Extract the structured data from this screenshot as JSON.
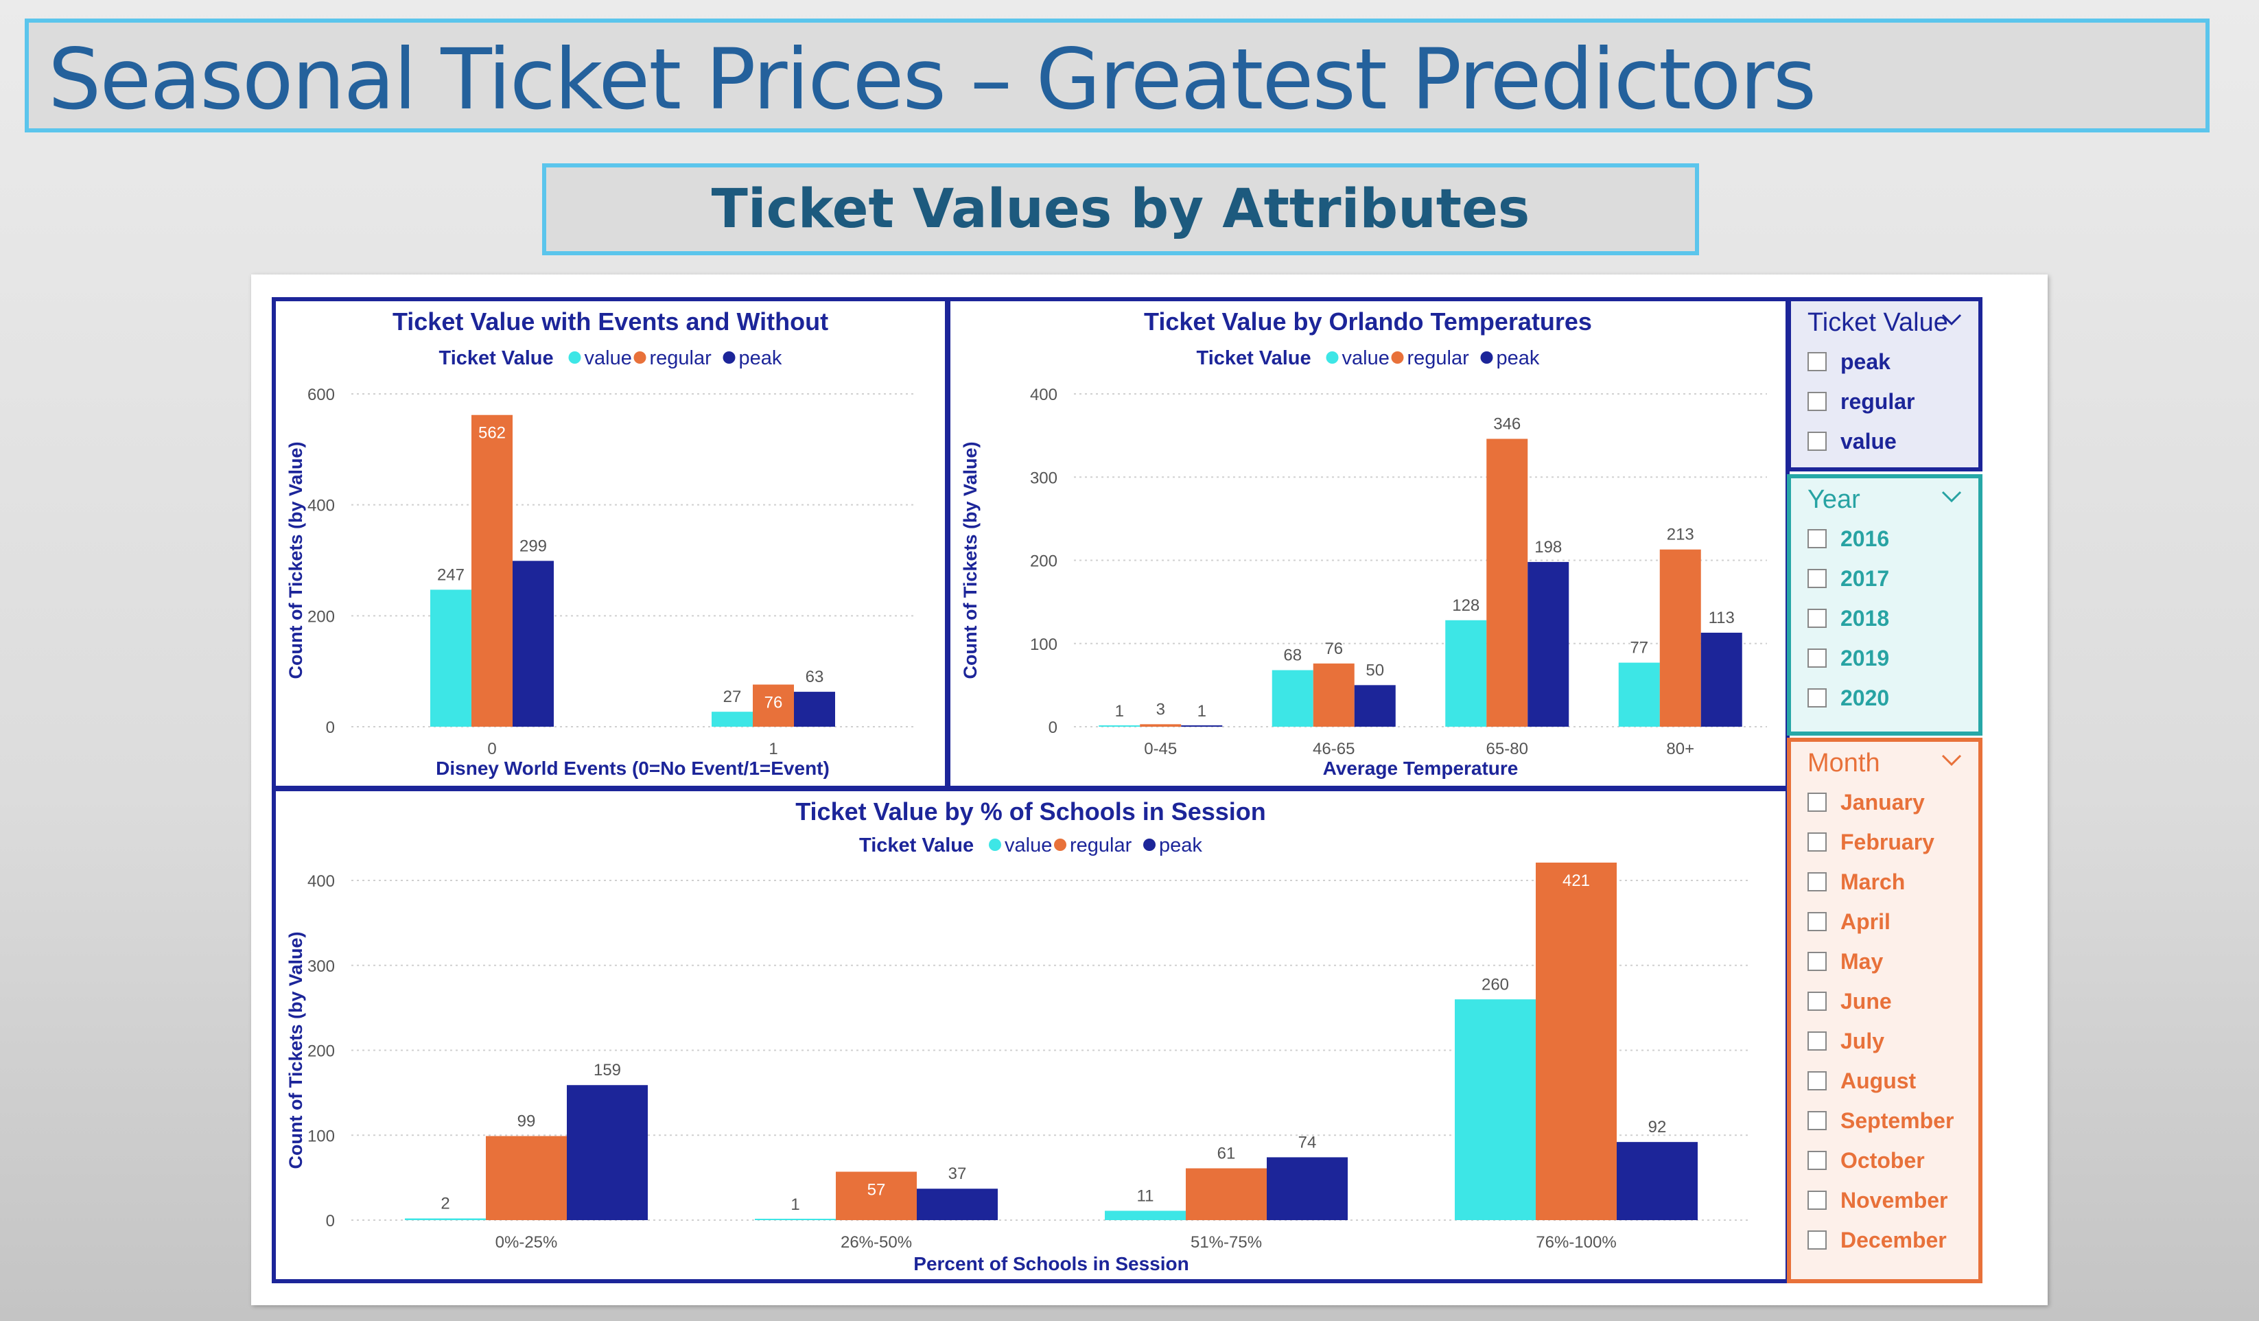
{
  "header": {
    "title": "Seasonal Ticket Prices – Greatest Predictors",
    "subtitle": "Ticket Values by Attributes"
  },
  "colors": {
    "value": "#3de6e6",
    "regular": "#e8713a",
    "peak": "#1c2599",
    "panel_border": "#1c2599",
    "header_border": "#5bc5ec"
  },
  "legend": {
    "title": "Ticket Value",
    "items": [
      "value",
      "regular",
      "peak"
    ]
  },
  "chart_data": [
    {
      "type": "bar",
      "title": "Ticket Value with Events and Without",
      "xlabel": "Disney World Events (0=No Event/1=Event)",
      "ylabel": "Count of Tickets (by Value)",
      "ylim": [
        0,
        600
      ],
      "yticks": [
        0,
        200,
        400,
        600
      ],
      "grid": true,
      "legend_position": "top",
      "categories": [
        "0",
        "1"
      ],
      "series": [
        {
          "name": "value",
          "values": [
            247,
            27
          ]
        },
        {
          "name": "regular",
          "values": [
            562,
            76
          ]
        },
        {
          "name": "peak",
          "values": [
            299,
            63
          ]
        }
      ]
    },
    {
      "type": "bar",
      "title": "Ticket Value by Orlando Temperatures",
      "xlabel": "Average Temperature",
      "ylabel": "Count of Tickets (by Value)",
      "ylim": [
        0,
        400
      ],
      "yticks": [
        0,
        100,
        200,
        300,
        400
      ],
      "grid": true,
      "legend_position": "top",
      "categories": [
        "0-45",
        "46-65",
        "65-80",
        "80+"
      ],
      "series": [
        {
          "name": "value",
          "values": [
            1,
            68,
            128,
            77
          ]
        },
        {
          "name": "regular",
          "values": [
            3,
            76,
            346,
            213
          ]
        },
        {
          "name": "peak",
          "values": [
            1,
            50,
            198,
            113
          ]
        }
      ]
    },
    {
      "type": "bar",
      "title": "Ticket Value by % of Schools in Session",
      "xlabel": "Percent of Schools in Session",
      "ylabel": "Count of Tickets (by Value)",
      "ylim": [
        0,
        400
      ],
      "yticks": [
        0,
        100,
        200,
        300,
        400
      ],
      "grid": true,
      "legend_position": "top",
      "categories": [
        "0%-25%",
        "26%-50%",
        "51%-75%",
        "76%-100%"
      ],
      "series": [
        {
          "name": "value",
          "values": [
            2,
            1,
            11,
            260
          ]
        },
        {
          "name": "regular",
          "values": [
            99,
            57,
            61,
            421
          ]
        },
        {
          "name": "peak",
          "values": [
            159,
            37,
            74,
            92
          ]
        }
      ]
    }
  ],
  "slicers": {
    "ticket_value": {
      "title": "Ticket Value",
      "options": [
        "peak",
        "regular",
        "value"
      ]
    },
    "year": {
      "title": "Year",
      "options": [
        "2016",
        "2017",
        "2018",
        "2019",
        "2020"
      ]
    },
    "month": {
      "title": "Month",
      "options": [
        "January",
        "February",
        "March",
        "April",
        "May",
        "June",
        "July",
        "August",
        "September",
        "October",
        "November",
        "December"
      ]
    }
  }
}
